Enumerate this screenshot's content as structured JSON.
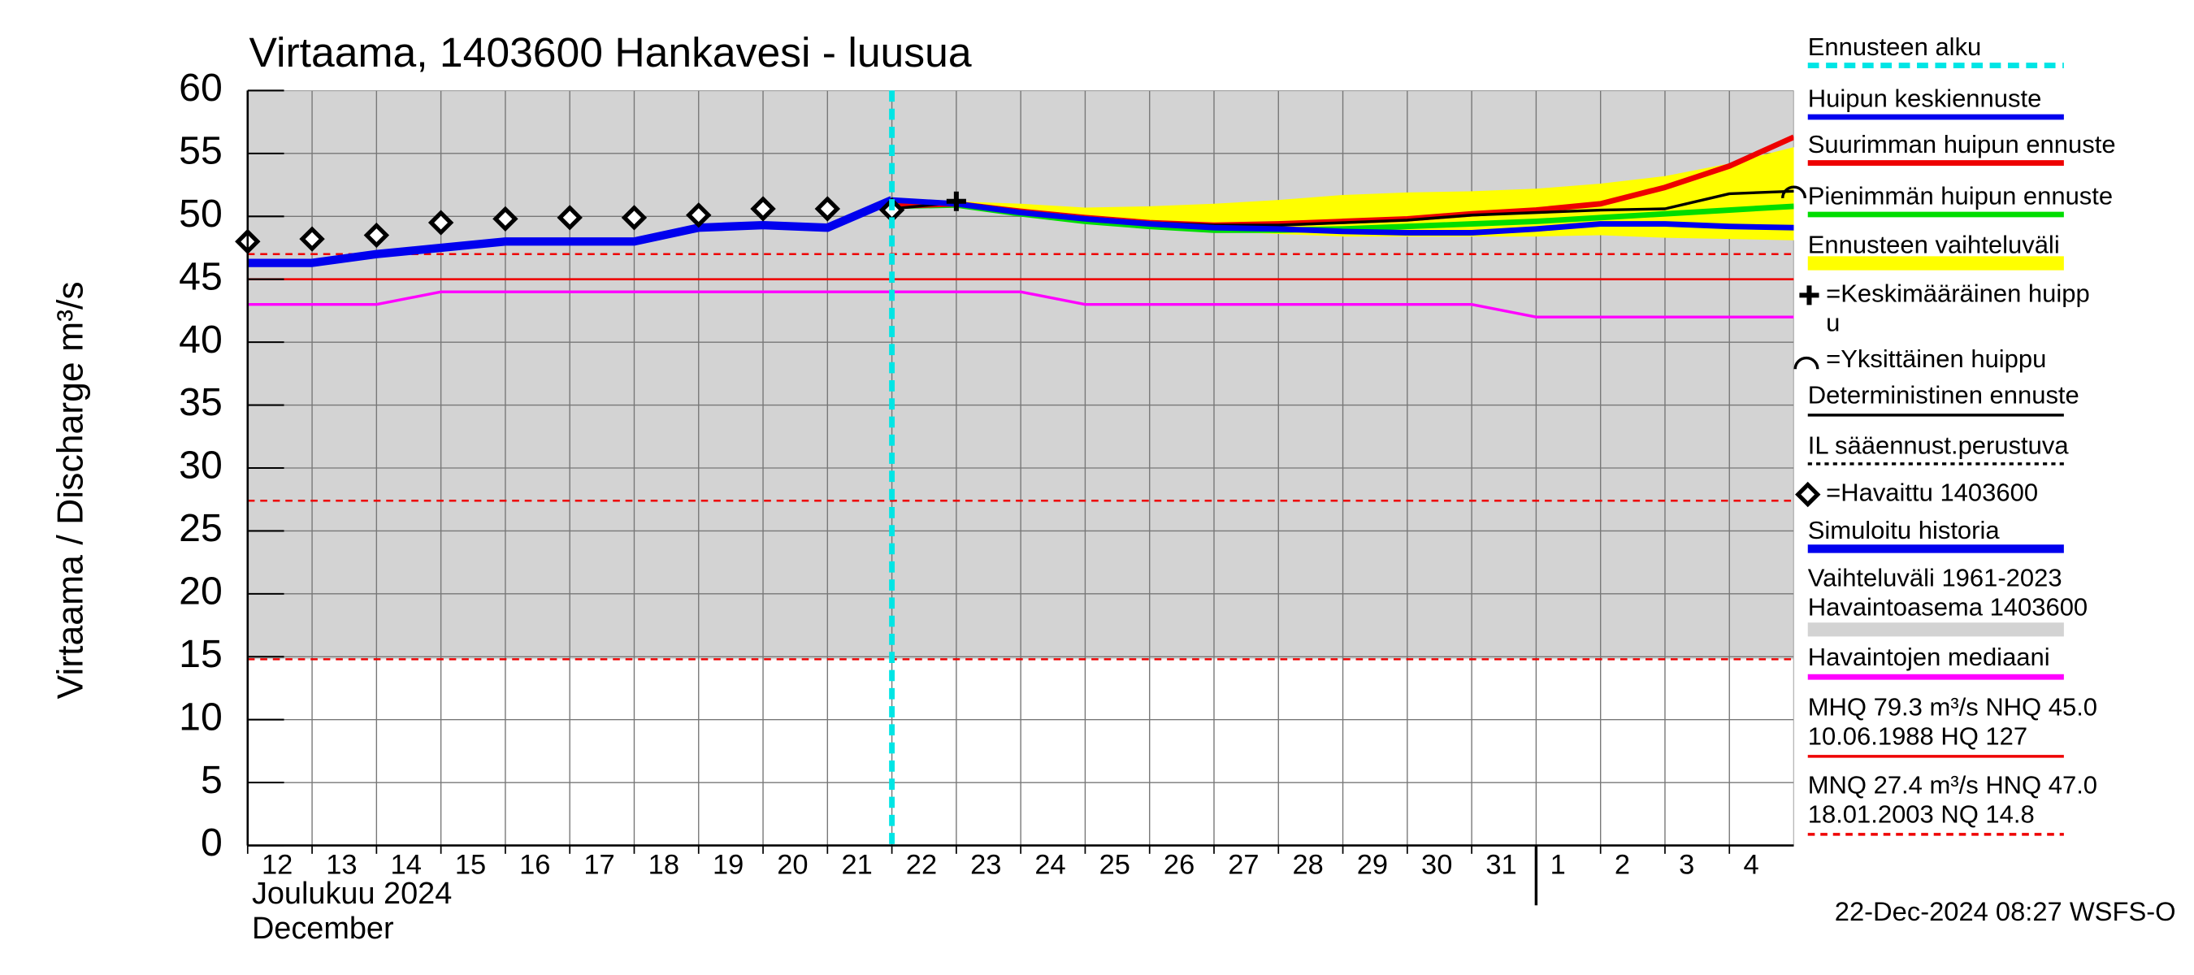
{
  "chart_data": {
    "type": "line",
    "title": "Virtaama, 1403600 Hankavesi - luusua",
    "y_label": "Virtaama / Discharge   m³/s",
    "month_label": "Joulukuu  2024",
    "month_label_en": "December",
    "footer": "22-Dec-2024 08:27 WSFS-O",
    "categories": [
      "12",
      "13",
      "14",
      "15",
      "16",
      "17",
      "18",
      "19",
      "20",
      "21",
      "22",
      "23",
      "24",
      "25",
      "26",
      "27",
      "28",
      "29",
      "30",
      "31",
      "1",
      "2",
      "3",
      "4",
      null
    ],
    "month_start": "1",
    "forecast_start": "22",
    "ylim": [
      0,
      60
    ],
    "yticks": [
      0,
      5,
      10,
      15,
      20,
      25,
      30,
      35,
      40,
      45,
      50,
      55,
      60
    ],
    "grid": true,
    "variation_range": {
      "color": "#d3d3d3",
      "low": 14.8,
      "high": 127
    },
    "reference_lines": [
      {
        "value": 45.0,
        "color": "#ee0000",
        "style": "solid"
      },
      {
        "value": 47.0,
        "color": "#ee0000",
        "style": "dash"
      },
      {
        "value": 27.4,
        "color": "#ee0000",
        "style": "dash"
      },
      {
        "value": 14.8,
        "color": "#ee0000",
        "style": "dash"
      }
    ],
    "band": {
      "color": "#ffff00",
      "high": [
        null,
        null,
        null,
        null,
        null,
        null,
        null,
        null,
        null,
        null,
        51,
        51.2,
        51,
        50.7,
        50.8,
        51,
        51.3,
        51.7,
        51.9,
        52,
        52.2,
        52.6,
        53.2,
        54.2,
        55.5
      ],
      "low": [
        null,
        null,
        null,
        null,
        null,
        null,
        null,
        null,
        null,
        null,
        50.8,
        50.8,
        50.1,
        49.6,
        49.1,
        48.8,
        48.6,
        48.4,
        48.4,
        48.4,
        48.4,
        48.5,
        48.3,
        48.2,
        48.1
      ]
    },
    "series": [
      {
        "kind": "line",
        "color": "#ff00ff",
        "width": 2,
        "values": [
          43,
          43,
          43,
          44,
          44,
          44,
          44,
          44,
          44,
          44,
          44,
          44,
          44,
          43,
          43,
          43,
          43,
          43,
          43,
          43,
          42,
          42,
          42,
          42,
          42
        ]
      },
      {
        "kind": "line",
        "color": "#00dd00",
        "width": 4,
        "values": [
          null,
          null,
          null,
          null,
          null,
          null,
          null,
          null,
          null,
          null,
          50.8,
          50.9,
          50.2,
          49.6,
          49.2,
          48.9,
          48.9,
          49,
          49.2,
          49.4,
          49.6,
          49.9,
          50.2,
          50.5,
          50.8
        ]
      },
      {
        "kind": "line",
        "color": "#ee0000",
        "width": 4,
        "values": [
          null,
          null,
          null,
          null,
          null,
          null,
          null,
          null,
          null,
          null,
          50.8,
          51,
          50.4,
          49.9,
          49.5,
          49.3,
          49.4,
          49.6,
          49.8,
          50.2,
          50.5,
          51,
          52.3,
          54,
          56.3
        ]
      },
      {
        "kind": "line",
        "color": "#000000",
        "width": 2,
        "values": [
          null,
          null,
          null,
          null,
          null,
          null,
          null,
          null,
          null,
          null,
          50.6,
          51.1,
          50.4,
          49.9,
          49.5,
          49.3,
          49.3,
          49.5,
          49.7,
          50.1,
          50.3,
          50.5,
          50.6,
          51.8,
          52
        ]
      },
      {
        "kind": "line",
        "color": "#0000ee",
        "width": 4,
        "values": [
          null,
          null,
          null,
          null,
          null,
          null,
          null,
          null,
          null,
          null,
          51.3,
          51,
          50.3,
          49.8,
          49.4,
          49.1,
          49,
          48.8,
          48.7,
          48.7,
          49,
          49.4,
          49.4,
          49.2,
          49.1
        ]
      },
      {
        "kind": "line",
        "color": "#0000ee",
        "width": 6,
        "values": [
          46.3,
          46.3,
          47,
          47.5,
          48,
          48,
          48,
          49.1,
          49.3,
          49.1,
          51.3,
          null,
          null,
          null,
          null,
          null,
          null,
          null,
          null,
          null,
          null,
          null,
          null,
          null,
          null
        ]
      },
      {
        "kind": "diamond",
        "color": "#000000",
        "values": [
          48,
          48.2,
          48.5,
          49.5,
          49.8,
          49.9,
          49.9,
          50.1,
          50.6,
          50.6,
          50.5,
          null,
          null,
          null,
          null,
          null,
          null,
          null,
          null,
          null,
          null,
          null,
          null,
          null,
          null
        ]
      },
      {
        "kind": "plus",
        "color": "#000000",
        "values": [
          null,
          null,
          null,
          null,
          null,
          null,
          null,
          null,
          null,
          null,
          null,
          51.2,
          null,
          null,
          null,
          null,
          null,
          null,
          null,
          null,
          null,
          null,
          null,
          null,
          null
        ]
      },
      {
        "kind": "arc",
        "color": "#000000",
        "values": [
          null,
          null,
          null,
          null,
          null,
          null,
          null,
          null,
          null,
          null,
          null,
          null,
          null,
          null,
          null,
          null,
          null,
          null,
          null,
          null,
          null,
          null,
          null,
          null,
          52
        ]
      }
    ],
    "forecast_line": {
      "color": "#00e5e5"
    },
    "legend": [
      {
        "lines": [
          "Ennusteen alku"
        ],
        "color": "#00e5e5",
        "style": "dash"
      },
      {
        "lines": [
          "Huipun keskiennuste"
        ],
        "color": "#0000ee",
        "style": "line"
      },
      {
        "lines": [
          "Suurimman huipun ennuste"
        ],
        "color": "#ee0000",
        "style": "line"
      },
      {
        "lines": [
          "Pienimmän huipun ennuste"
        ],
        "color": "#00dd00",
        "style": "line"
      },
      {
        "lines": [
          "Ennusteen vaihteluväli"
        ],
        "color": "#ffff00",
        "style": "band"
      },
      {
        "lines": [
          "=Keskimääräinen huipp",
          "u"
        ],
        "color": "#000000",
        "style": "plus"
      },
      {
        "lines": [
          "=Yksittäinen huippu"
        ],
        "color": "#000000",
        "style": "arc"
      },
      {
        "lines": [
          "Deterministinen ennuste"
        ],
        "color": "#000000",
        "style": "thin"
      },
      {
        "lines": [
          "IL sääennust.perustuva"
        ],
        "color": "#000000",
        "style": "dotted"
      },
      {
        "lines": [
          "=Havaittu 1403600"
        ],
        "color": "#000000",
        "style": "diamond"
      },
      {
        "lines": [
          "Simuloitu historia"
        ],
        "color": "#0000ee",
        "style": "thick"
      },
      {
        "lines": [
          "Vaihteluväli 1961-2023",
          " Havaintoasema 1403600"
        ],
        "color": "#d3d3d3",
        "style": "band"
      },
      {
        "lines": [
          "Havaintojen mediaani"
        ],
        "color": "#ff00ff",
        "style": "line"
      },
      {
        "lines": [
          "MHQ 79.3 m³/s NHQ 45.0",
          "10.06.1988 HQ  127"
        ],
        "color": "#ee0000",
        "style": "thin"
      },
      {
        "lines": [
          "MNQ 27.4 m³/s HNQ 47.0",
          "18.01.2003 NQ 14.8"
        ],
        "color": "#ee0000",
        "style": "thin-dash"
      }
    ]
  }
}
